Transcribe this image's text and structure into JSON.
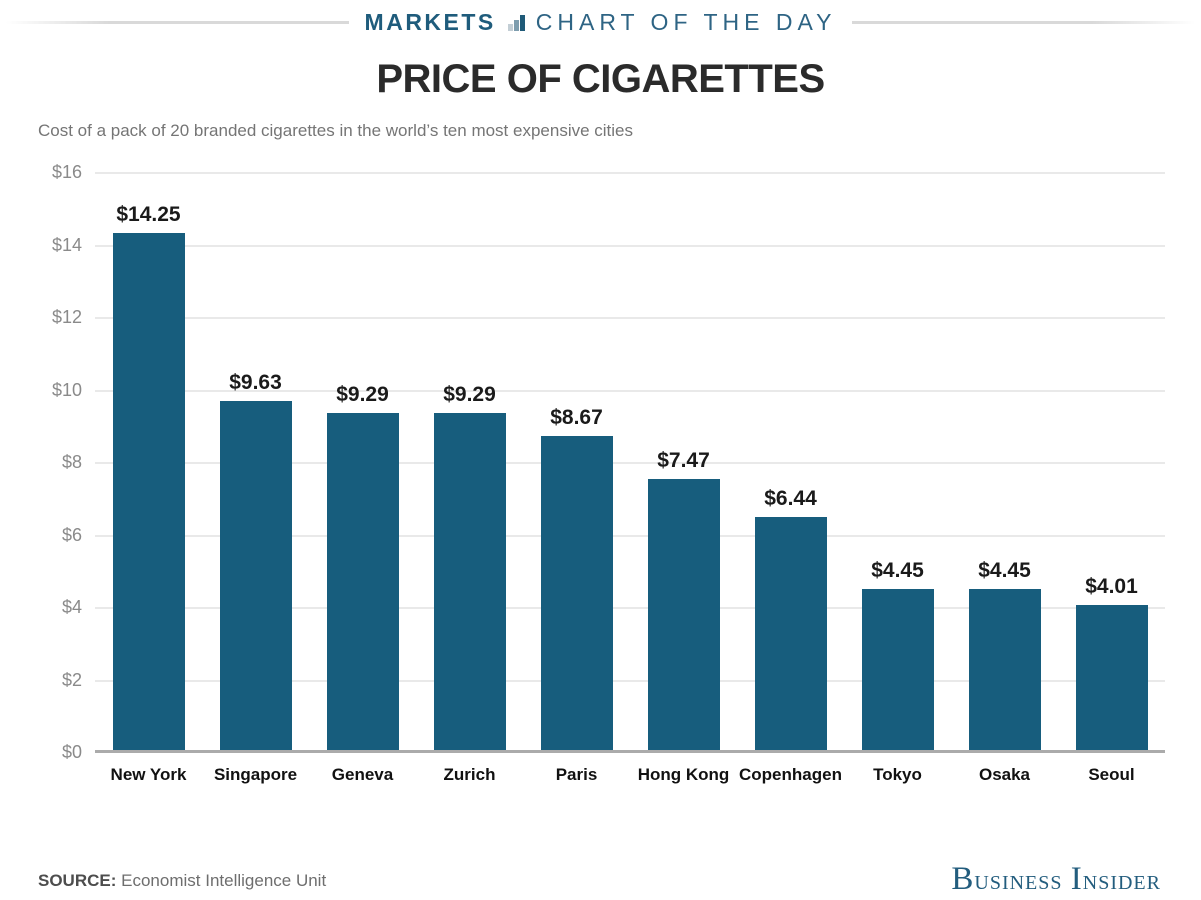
{
  "header": {
    "kicker_left": "MARKETS",
    "kicker_right": "CHART OF THE DAY",
    "icon": "bar-chart-icon"
  },
  "title": "PRICE OF CIGARETTES",
  "subtitle": "Cost of a pack of 20 branded cigarettes in the world’s ten most expensive cities",
  "footer": {
    "source_label": "SOURCE:",
    "source_text": "Economist Intelligence Unit",
    "brand": "BUSINESS INSIDER"
  },
  "colors": {
    "bar": "#175d7d",
    "kicker_markets": "#1f5c7c",
    "kicker_chartday": "#2e6484",
    "brand_blue": "#235d7e",
    "gridline": "#e9e9e9",
    "baseline": "#ababab",
    "axis_text": "#8a8a8a",
    "label_text": "#1a1a1a",
    "subtitle_text": "#757575"
  },
  "chart_data": {
    "type": "bar",
    "title": "PRICE OF CIGARETTES",
    "subtitle": "Cost of a pack of 20 branded cigarettes in the world’s ten most expensive cities",
    "categories": [
      "New York",
      "Singapore",
      "Geneva",
      "Zurich",
      "Paris",
      "Hong Kong",
      "Copenhagen",
      "Tokyo",
      "Osaka",
      "Seoul"
    ],
    "values": [
      14.25,
      9.63,
      9.29,
      9.29,
      8.67,
      7.47,
      6.44,
      4.45,
      4.45,
      4.01
    ],
    "data_labels": [
      "$14.25",
      "$9.63",
      "$9.29",
      "$9.29",
      "$8.67",
      "$7.47",
      "$6.44",
      "$4.45",
      "$4.45",
      "$4.01"
    ],
    "xlabel": "",
    "ylabel": "",
    "ylim": [
      0,
      16
    ],
    "ytick_step": 2,
    "ytick_labels": [
      "$0",
      "$2",
      "$4",
      "$6",
      "$8",
      "$10",
      "$12",
      "$14",
      "$16"
    ],
    "grid": true,
    "legend": false,
    "bar_color": "#175d7d"
  }
}
